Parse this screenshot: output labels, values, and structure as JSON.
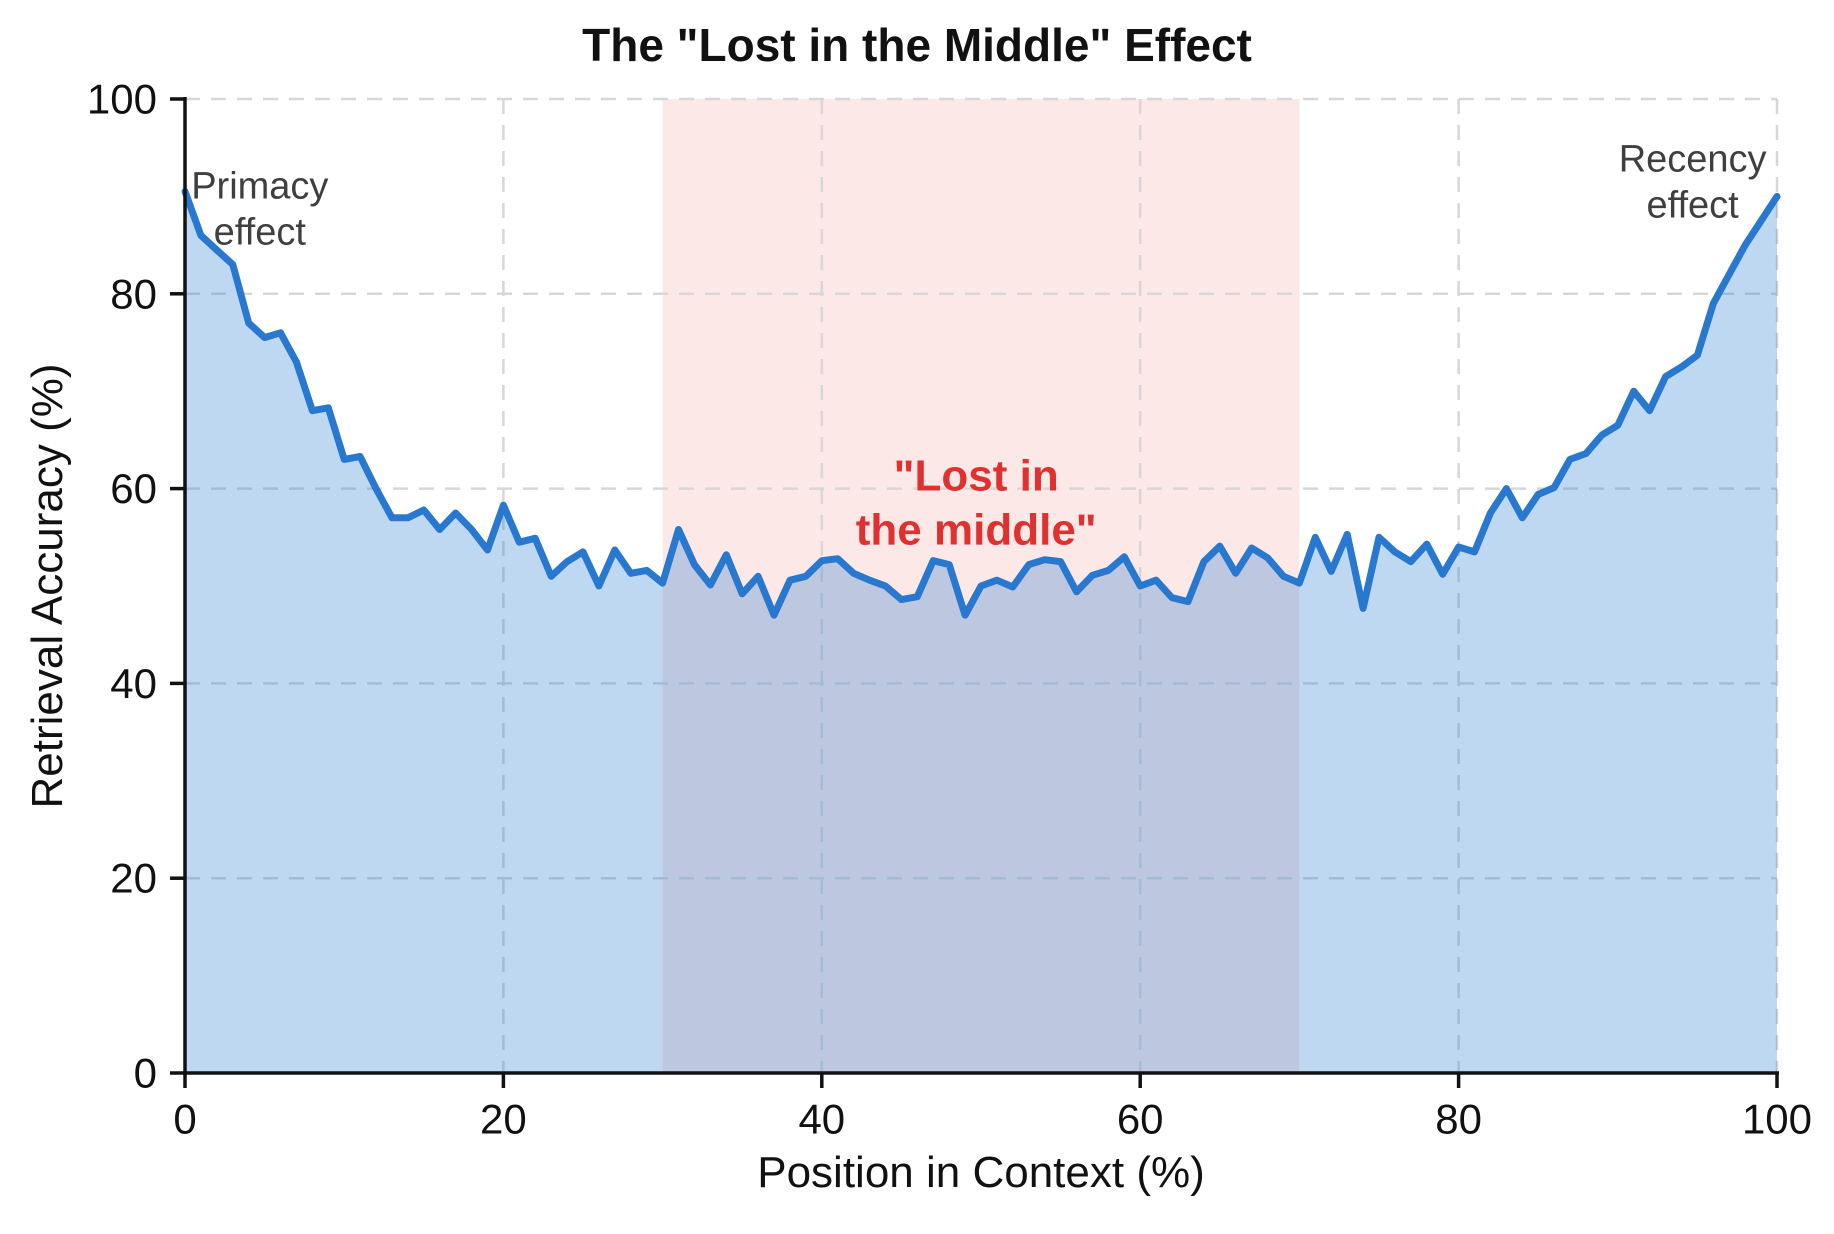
{
  "chart_data": {
    "type": "area",
    "title": "The \"Lost in the Middle\" Effect",
    "xlabel": "Position in Context (%)",
    "ylabel": "Retrieval Accuracy (%)",
    "xlim": [
      0,
      100
    ],
    "ylim": [
      0,
      100
    ],
    "x_ticks": [
      0,
      20,
      40,
      60,
      80,
      100
    ],
    "y_ticks": [
      0,
      20,
      40,
      60,
      80,
      100
    ],
    "grid": "dashed",
    "legend": "none",
    "x_note": "x values are 0,1,2,...,100 (index of values array = position percent)",
    "series": [
      {
        "name": "Retrieval accuracy",
        "values": [
          90.5,
          86,
          84.5,
          83,
          77,
          75.5,
          76,
          73,
          68,
          68.3,
          63,
          63.3,
          60,
          57,
          57,
          57.8,
          55.8,
          57.5,
          55.8,
          53.7,
          58.3,
          54.5,
          54.9,
          51,
          52.5,
          53.5,
          50,
          53.7,
          51.3,
          51.6,
          50.3,
          55.8,
          52.2,
          50.1,
          53.2,
          49.2,
          51,
          47,
          50.6,
          51,
          52.6,
          52.8,
          51.3,
          50.6,
          50,
          48.6,
          48.9,
          52.6,
          52.2,
          47,
          50,
          50.6,
          49.9,
          52.2,
          52.7,
          52.5,
          49.4,
          51.1,
          51.6,
          53,
          50,
          50.6,
          48.8,
          48.4,
          52.5,
          54.1,
          51.3,
          53.9,
          52.9,
          51,
          50.3,
          55,
          51.5,
          55.3,
          47.7,
          55,
          53.5,
          52.5,
          54.3,
          51.2,
          54,
          53.5,
          57.5,
          60,
          57,
          59.4,
          60.1,
          63,
          63.6,
          65.5,
          66.5,
          70,
          68,
          71.5,
          72.5,
          73.7,
          79,
          82,
          85,
          87.5,
          90
        ]
      }
    ],
    "highlight_region": {
      "x_start": 30,
      "x_end": 70,
      "y_start": 0,
      "y_end": 100
    },
    "annotations": [
      {
        "id": "primacy-effect",
        "lines": [
          "Primacy",
          "effect"
        ],
        "x": 4.7,
        "y": 88.6,
        "color": "#3f3f3f",
        "bold": false,
        "font_px": 38
      },
      {
        "id": "recency-effect",
        "lines": [
          "Recency",
          "effect"
        ],
        "x": 94.7,
        "y": 91.4,
        "color": "#3f3f3f",
        "bold": false,
        "font_px": 38
      },
      {
        "id": "lost-in-middle",
        "lines": [
          "\"Lost in",
          "the middle\""
        ],
        "x": 49.7,
        "y": 58.5,
        "color": "#e03131",
        "bold": true,
        "font_px": 44
      }
    ],
    "colors": {
      "line": "#2878d0",
      "area_fill": "rgba(43,126,211,0.30)",
      "region_fill": "rgba(231,76,60,0.13)",
      "grid": "#d7d7d7",
      "axis": "#111111",
      "tick_label": "#111111",
      "annotation_gray": "#3f3f3f",
      "annotation_red": "#e03131"
    }
  }
}
